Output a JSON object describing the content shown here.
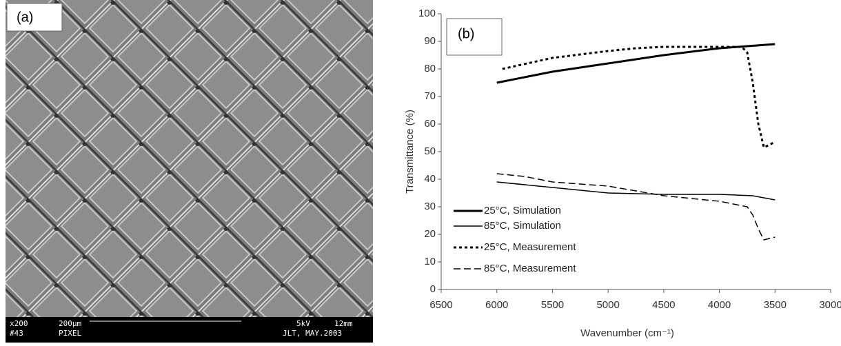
{
  "image": {
    "label": "(a)",
    "footer": {
      "magnification": "x200",
      "scale": "200µm",
      "voltage": "5kV",
      "distance": "12mm",
      "sample_no": "#43",
      "name": "PIXEL",
      "credit": "JLT, MAY.2003"
    }
  },
  "chart_data": {
    "type": "line",
    "label": "(b)",
    "x_label": "Wavenumber (cm⁻¹)",
    "y_label": "Transmittance (%)",
    "xlim": [
      6500,
      3000
    ],
    "xticks": [
      6500,
      6000,
      5500,
      5000,
      4500,
      4000,
      3500,
      3000
    ],
    "ylim": [
      0,
      100
    ],
    "yticks": [
      0,
      10,
      20,
      30,
      40,
      50,
      60,
      70,
      80,
      90,
      100
    ],
    "grid": false,
    "legend": "lower left",
    "series": [
      {
        "name": "25°C, Simulation",
        "color": "#000000",
        "style": "thick-solid",
        "x": [
          6000,
          5500,
          5000,
          4500,
          4000,
          3500
        ],
        "values": [
          75,
          79,
          82,
          85,
          87.5,
          89
        ]
      },
      {
        "name": "85°C, Simulation",
        "color": "#000000",
        "style": "solid",
        "x": [
          6000,
          5500,
          5000,
          4500,
          4000,
          3700,
          3500
        ],
        "values": [
          39,
          37,
          35,
          34.5,
          34.5,
          34,
          32.5
        ]
      },
      {
        "name": "25°C, Measurement",
        "color": "#000000",
        "style": "dotted",
        "x": [
          5950,
          5500,
          5000,
          4750,
          4500,
          4000,
          3800,
          3750,
          3700,
          3650,
          3600,
          3500
        ],
        "values": [
          80,
          84,
          86.5,
          87.5,
          88,
          88,
          88,
          86,
          75,
          60,
          51.5,
          53.5
        ]
      },
      {
        "name": "85°C, Measurement",
        "color": "#000000",
        "style": "dashed",
        "x": [
          6000,
          5750,
          5500,
          5000,
          4500,
          4000,
          3750,
          3700,
          3650,
          3600,
          3500
        ],
        "values": [
          42,
          41,
          39,
          37.5,
          34,
          32,
          30,
          27,
          22,
          18,
          19
        ]
      }
    ]
  }
}
